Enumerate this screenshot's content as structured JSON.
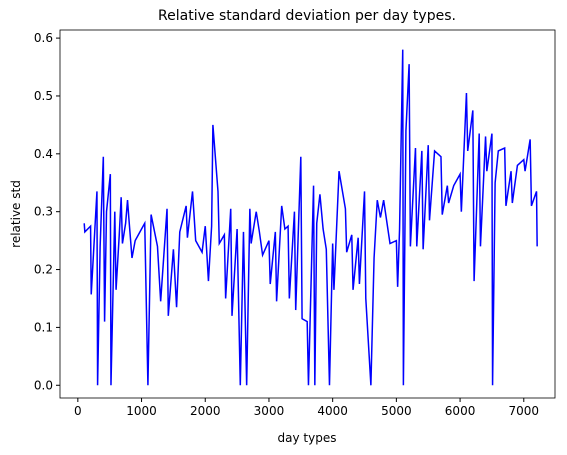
{
  "chart_data": {
    "type": "line",
    "title": "Relative standard deviation per day types.",
    "x_label": "day types",
    "y_label": "relative std",
    "color": "#0000ff",
    "x": [
      100,
      110,
      200,
      210,
      300,
      310,
      350,
      400,
      420,
      450,
      510,
      520,
      580,
      600,
      650,
      680,
      700,
      750,
      780,
      800,
      850,
      900,
      1000,
      1050,
      1100,
      1150,
      1250,
      1300,
      1400,
      1420,
      1500,
      1550,
      1600,
      1700,
      1720,
      1800,
      1850,
      1950,
      2000,
      2050,
      2100,
      2120,
      2200,
      2220,
      2300,
      2320,
      2400,
      2420,
      2500,
      2550,
      2600,
      2650,
      2700,
      2720,
      2800,
      2850,
      2900,
      3000,
      3020,
      3100,
      3120,
      3200,
      3250,
      3300,
      3320,
      3400,
      3420,
      3500,
      3520,
      3600,
      3620,
      3700,
      3720,
      3750,
      3800,
      3850,
      3900,
      3950,
      4000,
      4020,
      4100,
      4200,
      4220,
      4300,
      4320,
      4400,
      4420,
      4500,
      4520,
      4600,
      4650,
      4700,
      4750,
      4800,
      4900,
      5000,
      5020,
      5050,
      5100,
      5110,
      5150,
      5200,
      5220,
      5300,
      5320,
      5400,
      5420,
      5500,
      5520,
      5600,
      5700,
      5720,
      5800,
      5820,
      5900,
      6000,
      6020,
      6100,
      6120,
      6200,
      6220,
      6300,
      6320,
      6400,
      6420,
      6500,
      6510,
      6550,
      6600,
      6700,
      6720,
      6800,
      6820,
      6900,
      7000,
      7020,
      7100,
      7120,
      7200,
      7210
    ],
    "values": [
      0.28,
      0.265,
      0.275,
      0.157,
      0.335,
      0.0,
      0.24,
      0.395,
      0.11,
      0.3,
      0.365,
      0.0,
      0.3,
      0.165,
      0.26,
      0.325,
      0.245,
      0.28,
      0.32,
      0.29,
      0.22,
      0.25,
      0.27,
      0.28,
      0.0,
      0.295,
      0.24,
      0.145,
      0.305,
      0.12,
      0.235,
      0.135,
      0.265,
      0.31,
      0.255,
      0.335,
      0.25,
      0.23,
      0.275,
      0.18,
      0.275,
      0.45,
      0.335,
      0.245,
      0.26,
      0.15,
      0.305,
      0.12,
      0.27,
      0.0,
      0.265,
      0.0,
      0.305,
      0.245,
      0.3,
      0.265,
      0.225,
      0.25,
      0.175,
      0.265,
      0.145,
      0.31,
      0.27,
      0.275,
      0.15,
      0.3,
      0.13,
      0.395,
      0.115,
      0.11,
      0.0,
      0.345,
      0.0,
      0.28,
      0.33,
      0.27,
      0.235,
      0.0,
      0.245,
      0.165,
      0.37,
      0.305,
      0.23,
      0.26,
      0.165,
      0.255,
      0.175,
      0.335,
      0.15,
      0.0,
      0.22,
      0.32,
      0.29,
      0.32,
      0.245,
      0.25,
      0.17,
      0.27,
      0.58,
      0.0,
      0.44,
      0.555,
      0.24,
      0.41,
      0.24,
      0.405,
      0.235,
      0.415,
      0.285,
      0.405,
      0.395,
      0.295,
      0.345,
      0.315,
      0.345,
      0.365,
      0.3,
      0.505,
      0.405,
      0.475,
      0.18,
      0.435,
      0.24,
      0.43,
      0.37,
      0.435,
      0.0,
      0.35,
      0.405,
      0.41,
      0.31,
      0.37,
      0.315,
      0.38,
      0.39,
      0.37,
      0.425,
      0.31,
      0.335,
      0.24
    ],
    "xlim": [
      -280,
      7490
    ],
    "ylim": [
      -0.022,
      0.614
    ],
    "xticks": [
      0,
      1000,
      2000,
      3000,
      4000,
      5000,
      6000,
      7000
    ],
    "yticks": [
      {
        "value": 0,
        "label": "0.0"
      },
      0.1,
      0.2,
      0.3,
      0.4,
      0.5,
      0.6
    ]
  }
}
